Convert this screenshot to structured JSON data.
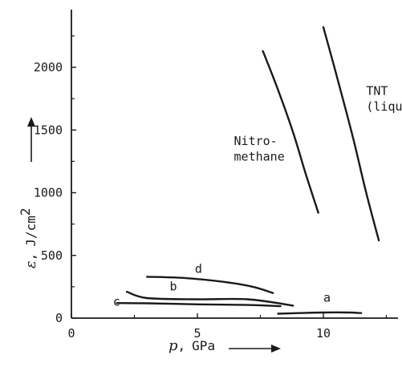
{
  "chart_data": {
    "type": "line",
    "xlabel": {
      "var": "p",
      "sep": ",",
      "unit": "GPa"
    },
    "ylabel": {
      "var": "ε",
      "sep": ",",
      "unit": "J/cm",
      "exp": "2"
    },
    "xlim": [
      0,
      13
    ],
    "ylim": [
      0,
      2450
    ],
    "x_ticks": [
      0,
      5,
      10
    ],
    "y_ticks": [
      0,
      500,
      1000,
      1500,
      2000
    ],
    "x_tick_labels": [
      "0",
      "5",
      "10"
    ],
    "y_tick_labels": [
      "0",
      "500",
      "1000",
      "1500",
      "2000"
    ],
    "grid": false,
    "series": [
      {
        "name": "TNT (liquid)",
        "label_lines": [
          "TNT",
          "(liquid)"
        ],
        "label_at": [
          11.7,
          1780
        ],
        "x": [
          10.0,
          10.6,
          11.2,
          11.7,
          12.2
        ],
        "y": [
          2320,
          1880,
          1420,
          1000,
          620
        ]
      },
      {
        "name": "Nitro-methane",
        "label_lines": [
          "Nitro-",
          "methane"
        ],
        "label_at": [
          6.45,
          1380
        ],
        "x": [
          7.6,
          8.2,
          8.8,
          9.3,
          9.8
        ],
        "y": [
          2130,
          1820,
          1480,
          1150,
          840
        ]
      },
      {
        "name": "d",
        "label_lines": [
          "d"
        ],
        "label_at": [
          4.9,
          360
        ],
        "x": [
          3.0,
          4.5,
          6.0,
          7.2,
          8.0
        ],
        "y": [
          330,
          320,
          290,
          250,
          200
        ]
      },
      {
        "name": "b",
        "label_lines": [
          "b"
        ],
        "label_at": [
          3.9,
          220
        ],
        "x": [
          2.2,
          3.0,
          5.0,
          7.0,
          8.8
        ],
        "y": [
          210,
          160,
          150,
          150,
          100
        ]
      },
      {
        "name": "c",
        "label_lines": [
          "c"
        ],
        "label_at": [
          1.65,
          100
        ],
        "x": [
          1.8,
          3.0,
          5.0,
          7.0,
          8.3
        ],
        "y": [
          120,
          118,
          110,
          105,
          95
        ]
      },
      {
        "name": "a",
        "label_lines": [
          "a"
        ],
        "label_at": [
          10.0,
          130
        ],
        "x": [
          8.2,
          9.0,
          10.0,
          11.0,
          11.5
        ],
        "y": [
          35,
          40,
          45,
          45,
          40
        ]
      }
    ]
  }
}
